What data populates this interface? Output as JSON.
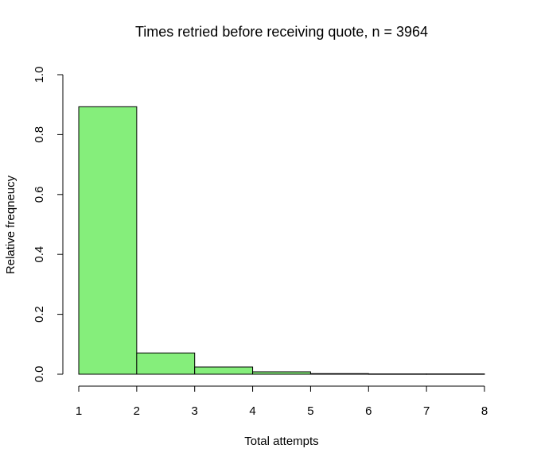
{
  "chart_data": {
    "type": "bar",
    "title": "Times retried before receiving quote, n = 3964",
    "xlabel": "Total attempts",
    "ylabel": "Relative freqneucy",
    "bin_edges": [
      1,
      2,
      3,
      4,
      5,
      6,
      7,
      8
    ],
    "values": [
      0.893,
      0.071,
      0.024,
      0.008,
      0.002,
      0.001,
      0.001
    ],
    "xlim": [
      1,
      8
    ],
    "ylim": [
      0,
      1
    ],
    "x_ticks": [
      "1",
      "2",
      "3",
      "4",
      "5",
      "6",
      "7",
      "8"
    ],
    "y_ticks": [
      "0.0",
      "0.2",
      "0.4",
      "0.6",
      "0.8",
      "1.0"
    ],
    "bar_color": "#85ee7b",
    "grid": false
  }
}
